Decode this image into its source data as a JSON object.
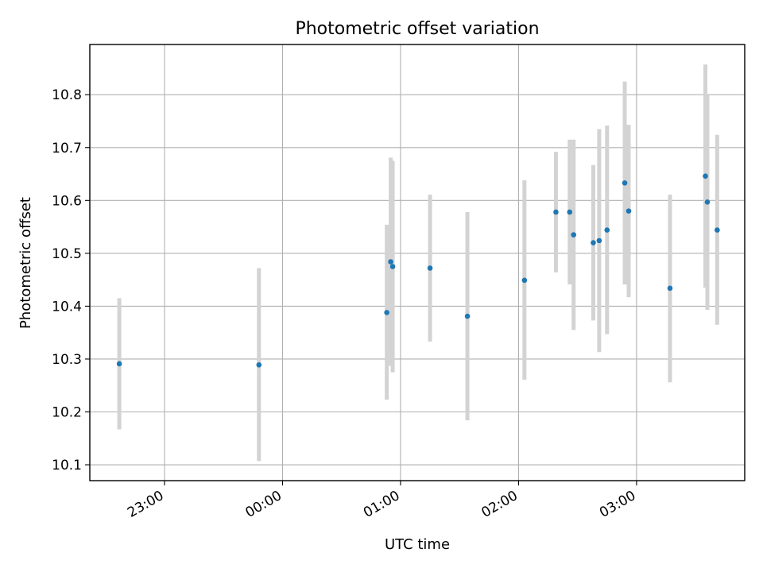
{
  "chart_data": {
    "type": "scatter",
    "title": "Photometric offset variation",
    "xlabel": "UTC time",
    "ylabel": "Photometric offset",
    "x_axis_type": "time",
    "xlim": [
      "22:22",
      "03:55"
    ],
    "ylim": [
      10.07,
      10.895
    ],
    "x_ticks": [
      "23:00",
      "00:00",
      "01:00",
      "02:00",
      "03:00"
    ],
    "y_ticks": [
      10.1,
      10.2,
      10.3,
      10.4,
      10.5,
      10.6,
      10.7,
      10.8
    ],
    "y_tick_labels": [
      "10.1",
      "10.2",
      "10.3",
      "10.4",
      "10.5",
      "10.6",
      "10.7",
      "10.8"
    ],
    "grid": true,
    "legend": "none",
    "colors": {
      "point": "#1f77b4",
      "error_bar": "#d3d3d3",
      "grid": "#b0b0b0"
    },
    "series": [
      {
        "points": [
          {
            "time": "22:37",
            "y": 10.291,
            "ylow": 10.167,
            "yhigh": 10.415
          },
          {
            "time": "23:48",
            "y": 10.289,
            "ylow": 10.107,
            "yhigh": 10.472
          },
          {
            "time": "00:53",
            "y": 10.388,
            "ylow": 10.223,
            "yhigh": 10.554
          },
          {
            "time": "00:55",
            "y": 10.484,
            "ylow": 10.287,
            "yhigh": 10.681
          },
          {
            "time": "00:56",
            "y": 10.475,
            "ylow": 10.275,
            "yhigh": 10.675
          },
          {
            "time": "01:15",
            "y": 10.472,
            "ylow": 10.333,
            "yhigh": 10.611
          },
          {
            "time": "01:34",
            "y": 10.381,
            "ylow": 10.184,
            "yhigh": 10.578
          },
          {
            "time": "02:03",
            "y": 10.449,
            "ylow": 10.261,
            "yhigh": 10.638
          },
          {
            "time": "02:19",
            "y": 10.578,
            "ylow": 10.464,
            "yhigh": 10.692
          },
          {
            "time": "02:26",
            "y": 10.578,
            "ylow": 10.441,
            "yhigh": 10.715
          },
          {
            "time": "02:28",
            "y": 10.535,
            "ylow": 10.355,
            "yhigh": 10.715
          },
          {
            "time": "02:38",
            "y": 10.52,
            "ylow": 10.373,
            "yhigh": 10.667
          },
          {
            "time": "02:41",
            "y": 10.524,
            "ylow": 10.313,
            "yhigh": 10.735
          },
          {
            "time": "02:45",
            "y": 10.544,
            "ylow": 10.347,
            "yhigh": 10.742
          },
          {
            "time": "02:54",
            "y": 10.633,
            "ylow": 10.441,
            "yhigh": 10.825
          },
          {
            "time": "02:56",
            "y": 10.58,
            "ylow": 10.417,
            "yhigh": 10.743
          },
          {
            "time": "03:17",
            "y": 10.434,
            "ylow": 10.256,
            "yhigh": 10.611
          },
          {
            "time": "03:35",
            "y": 10.646,
            "ylow": 10.435,
            "yhigh": 10.857
          },
          {
            "time": "03:36",
            "y": 10.597,
            "ylow": 10.393,
            "yhigh": 10.8
          },
          {
            "time": "03:41",
            "y": 10.544,
            "ylow": 10.365,
            "yhigh": 10.724
          }
        ]
      }
    ]
  }
}
